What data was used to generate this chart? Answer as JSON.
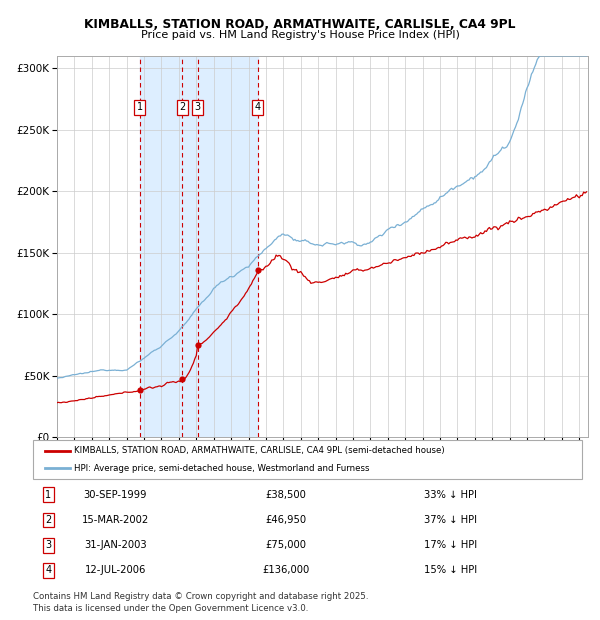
{
  "title": "KIMBALLS, STATION ROAD, ARMATHWAITE, CARLISLE, CA4 9PL",
  "subtitle": "Price paid vs. HM Land Registry's House Price Index (HPI)",
  "ylim": [
    0,
    310000
  ],
  "yticks": [
    0,
    50000,
    100000,
    150000,
    200000,
    250000,
    300000
  ],
  "ytick_labels": [
    "£0",
    "£50K",
    "£100K",
    "£150K",
    "£200K",
    "£250K",
    "£300K"
  ],
  "sale_prices": [
    38500,
    46950,
    75000,
    136000
  ],
  "sale_year_floats": [
    1999.748,
    2002.204,
    2003.082,
    2006.534
  ],
  "red_line_color": "#cc0000",
  "blue_line_color": "#7ab0d4",
  "shade_color": "#ddeeff",
  "vline_color": "#cc0000",
  "legend_red_label": "KIMBALLS, STATION ROAD, ARMATHWAITE, CARLISLE, CA4 9PL (semi-detached house)",
  "legend_blue_label": "HPI: Average price, semi-detached house, Westmorland and Furness",
  "footer1": "Contains HM Land Registry data © Crown copyright and database right 2025.",
  "footer2": "This data is licensed under the Open Government Licence v3.0.",
  "table_rows": [
    [
      "1",
      "30-SEP-1999",
      "£38,500",
      "33% ↓ HPI"
    ],
    [
      "2",
      "15-MAR-2002",
      "£46,950",
      "37% ↓ HPI"
    ],
    [
      "3",
      "31-JAN-2003",
      "£75,000",
      "17% ↓ HPI"
    ],
    [
      "4",
      "12-JUL-2006",
      "£136,000",
      "15% ↓ HPI"
    ]
  ],
  "background_color": "#ffffff",
  "grid_color": "#cccccc",
  "xmin": 1995.0,
  "xmax": 2025.5
}
